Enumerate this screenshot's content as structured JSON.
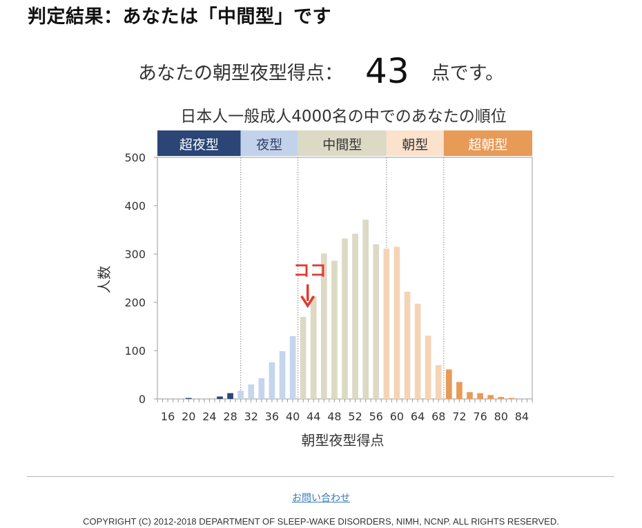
{
  "heading": "判定結果：あなたは「中間型」です",
  "score": {
    "prefix": "あなたの朝型夜型得点：",
    "value": "43",
    "suffix": "点です。"
  },
  "marker_label": "ココ",
  "footer": {
    "contact_link": "お問い合わせ",
    "copyright": "COPYRIGHT (C) 2012-2018 DEPARTMENT OF SLEEP-WAKE DISORDERS, NIMH, NCNP. ALL RIGHTS RESERVED."
  },
  "chart_data": {
    "type": "bar",
    "title": "日本人一般成人4000名の中でのあなたの順位",
    "xlabel": "朝型夜型得点",
    "ylabel": "人数",
    "ylim": [
      0,
      500
    ],
    "xlim": [
      14,
      86
    ],
    "yticks": [
      0,
      100,
      200,
      300,
      400,
      500
    ],
    "xticks": [
      16,
      20,
      24,
      28,
      32,
      36,
      40,
      44,
      48,
      52,
      56,
      60,
      64,
      68,
      72,
      76,
      80,
      84
    ],
    "grid": false,
    "user_score": 43,
    "bands": [
      {
        "label": "超夜型",
        "from": 14,
        "to": 30,
        "color": "#2b4676",
        "bar_color": "#2b4676",
        "text_color": "#ffffff"
      },
      {
        "label": "夜型",
        "from": 30,
        "to": 41,
        "color": "#c2d2ea",
        "bar_color": "#c5d5ec",
        "text_color": "#2c3e66"
      },
      {
        "label": "中間型",
        "from": 41,
        "to": 58,
        "color": "#dcd9c4",
        "bar_color": "#dcd9c4",
        "text_color": "#333333"
      },
      {
        "label": "朝型",
        "from": 58,
        "to": 69,
        "color": "#fbe2cd",
        "bar_color": "#f5d4b5",
        "text_color": "#333333"
      },
      {
        "label": "超朝型",
        "from": 69,
        "to": 86,
        "color": "#e89a57",
        "bar_color": "#e89a57",
        "text_color": "#ffffff"
      }
    ],
    "x": [
      16,
      17,
      18,
      19,
      20,
      21,
      22,
      23,
      24,
      25,
      26,
      27,
      28,
      29,
      30,
      31,
      32,
      33,
      34,
      35,
      36,
      37,
      38,
      39,
      40,
      41,
      42,
      43,
      44,
      45,
      46,
      47,
      48,
      49,
      50,
      51,
      52,
      53,
      54,
      55,
      56,
      57,
      58,
      59,
      60,
      61,
      62,
      63,
      64,
      65,
      66,
      67,
      68,
      69,
      70,
      71,
      72,
      73,
      74,
      75,
      76,
      77,
      78,
      79,
      80,
      81,
      82,
      83,
      84,
      85,
      86
    ],
    "values": [
      0,
      0,
      0,
      0,
      2,
      0,
      0,
      0,
      0,
      0,
      5,
      0,
      12,
      0,
      17,
      0,
      30,
      0,
      43,
      0,
      76,
      0,
      99,
      0,
      130,
      0,
      170,
      0,
      212,
      0,
      301,
      0,
      286,
      0,
      332,
      0,
      342,
      0,
      371,
      0,
      320,
      0,
      311,
      0,
      315,
      0,
      222,
      0,
      197,
      0,
      131,
      0,
      70,
      0,
      61,
      0,
      35,
      0,
      14,
      0,
      12,
      0,
      8,
      0,
      4,
      0,
      2,
      0,
      0,
      0,
      0
    ]
  }
}
